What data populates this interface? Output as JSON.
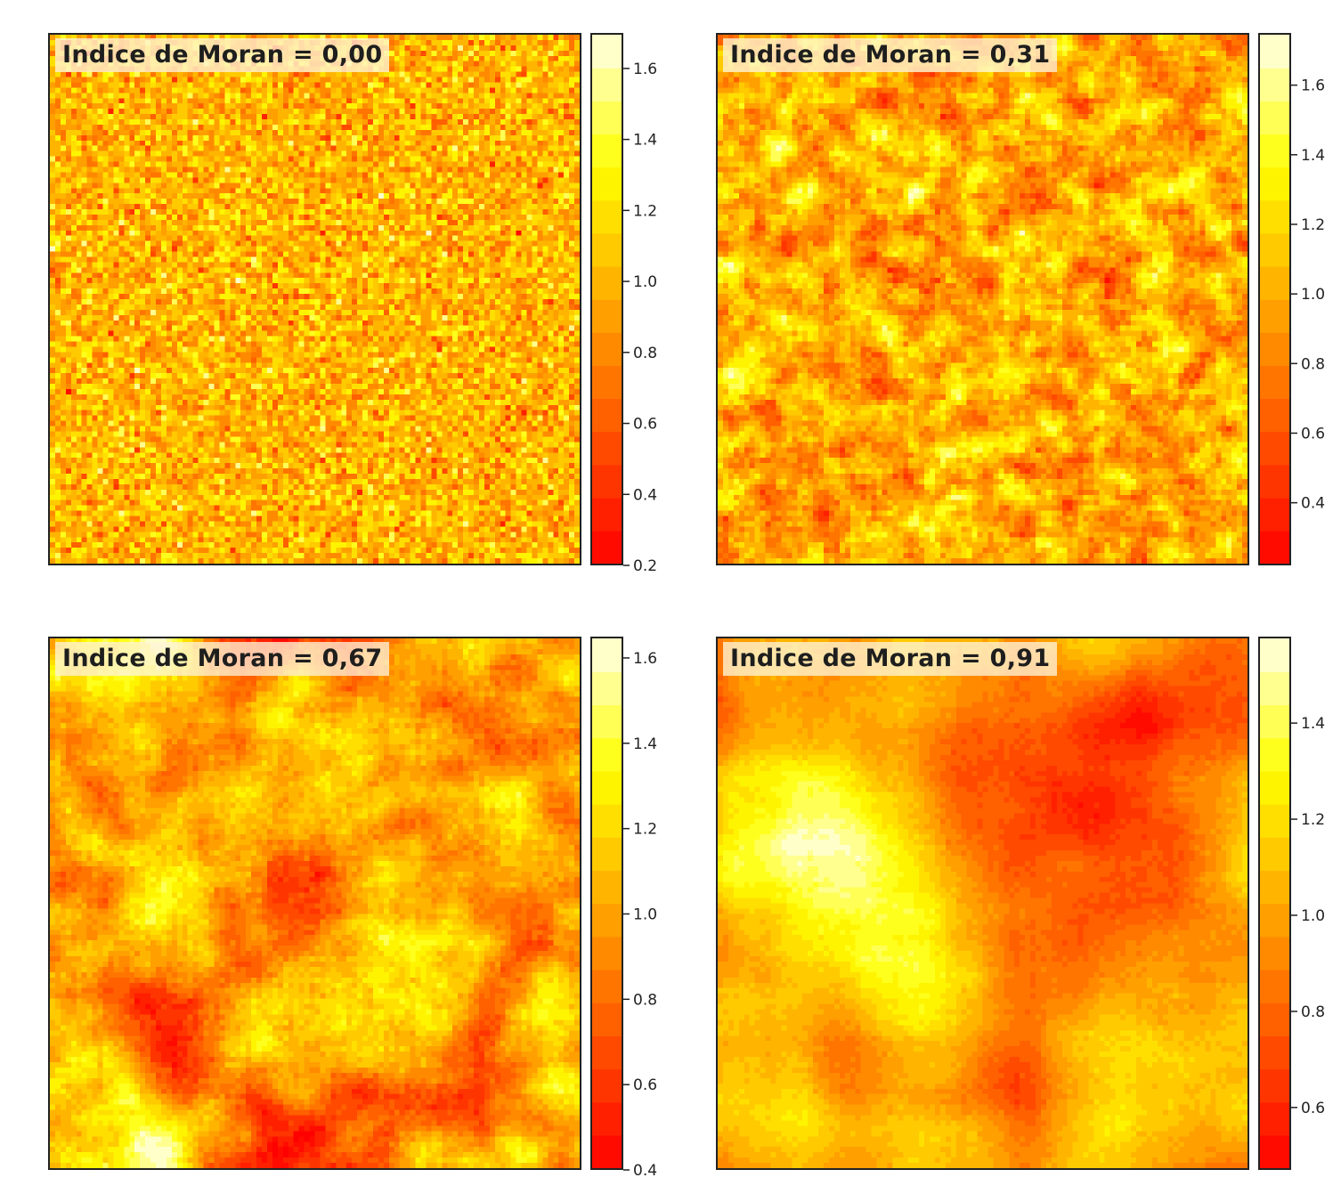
{
  "chart_data": [
    {
      "type": "heatmap",
      "title": "Indice de Moran = 0,00",
      "moran_index": 0.0,
      "colormap": "heat",
      "grid_cells": 100,
      "value_range": [
        0.2,
        1.7
      ],
      "colorbar_ticks": [
        "0.2",
        "0.4",
        "0.6",
        "0.8",
        "1.0",
        "1.2",
        "1.4",
        "1.6"
      ],
      "colorbar_tick_values": [
        0.2,
        0.4,
        0.6,
        0.8,
        1.0,
        1.2,
        1.4,
        1.6
      ]
    },
    {
      "type": "heatmap",
      "title": "Indice de Moran = 0,31",
      "moran_index": 0.31,
      "colormap": "heat",
      "grid_cells": 100,
      "value_range": [
        0.22,
        1.75
      ],
      "colorbar_ticks": [
        "0.4",
        "0.6",
        "0.8",
        "1.0",
        "1.2",
        "1.4",
        "1.6"
      ],
      "colorbar_tick_values": [
        0.4,
        0.6,
        0.8,
        1.0,
        1.2,
        1.4,
        1.6
      ]
    },
    {
      "type": "heatmap",
      "title": "Indice de Moran = 0,67",
      "moran_index": 0.67,
      "colormap": "heat",
      "grid_cells": 100,
      "value_range": [
        0.4,
        1.65
      ],
      "colorbar_ticks": [
        "0.4",
        "0.6",
        "0.8",
        "1.0",
        "1.2",
        "1.4",
        "1.6"
      ],
      "colorbar_tick_values": [
        0.4,
        0.6,
        0.8,
        1.0,
        1.2,
        1.4,
        1.6
      ]
    },
    {
      "type": "heatmap",
      "title": "Indice de Moran = 0,91",
      "moran_index": 0.91,
      "colormap": "heat",
      "grid_cells": 100,
      "value_range": [
        0.47,
        1.58
      ],
      "colorbar_ticks": [
        "0.6",
        "0.8",
        "1.0",
        "1.2",
        "1.4"
      ],
      "colorbar_tick_values": [
        0.6,
        0.8,
        1.0,
        1.2,
        1.4
      ]
    }
  ],
  "colors": {
    "frame": "#222222",
    "label_background": "#fff3d7",
    "label_text": "#1e1e1e"
  }
}
